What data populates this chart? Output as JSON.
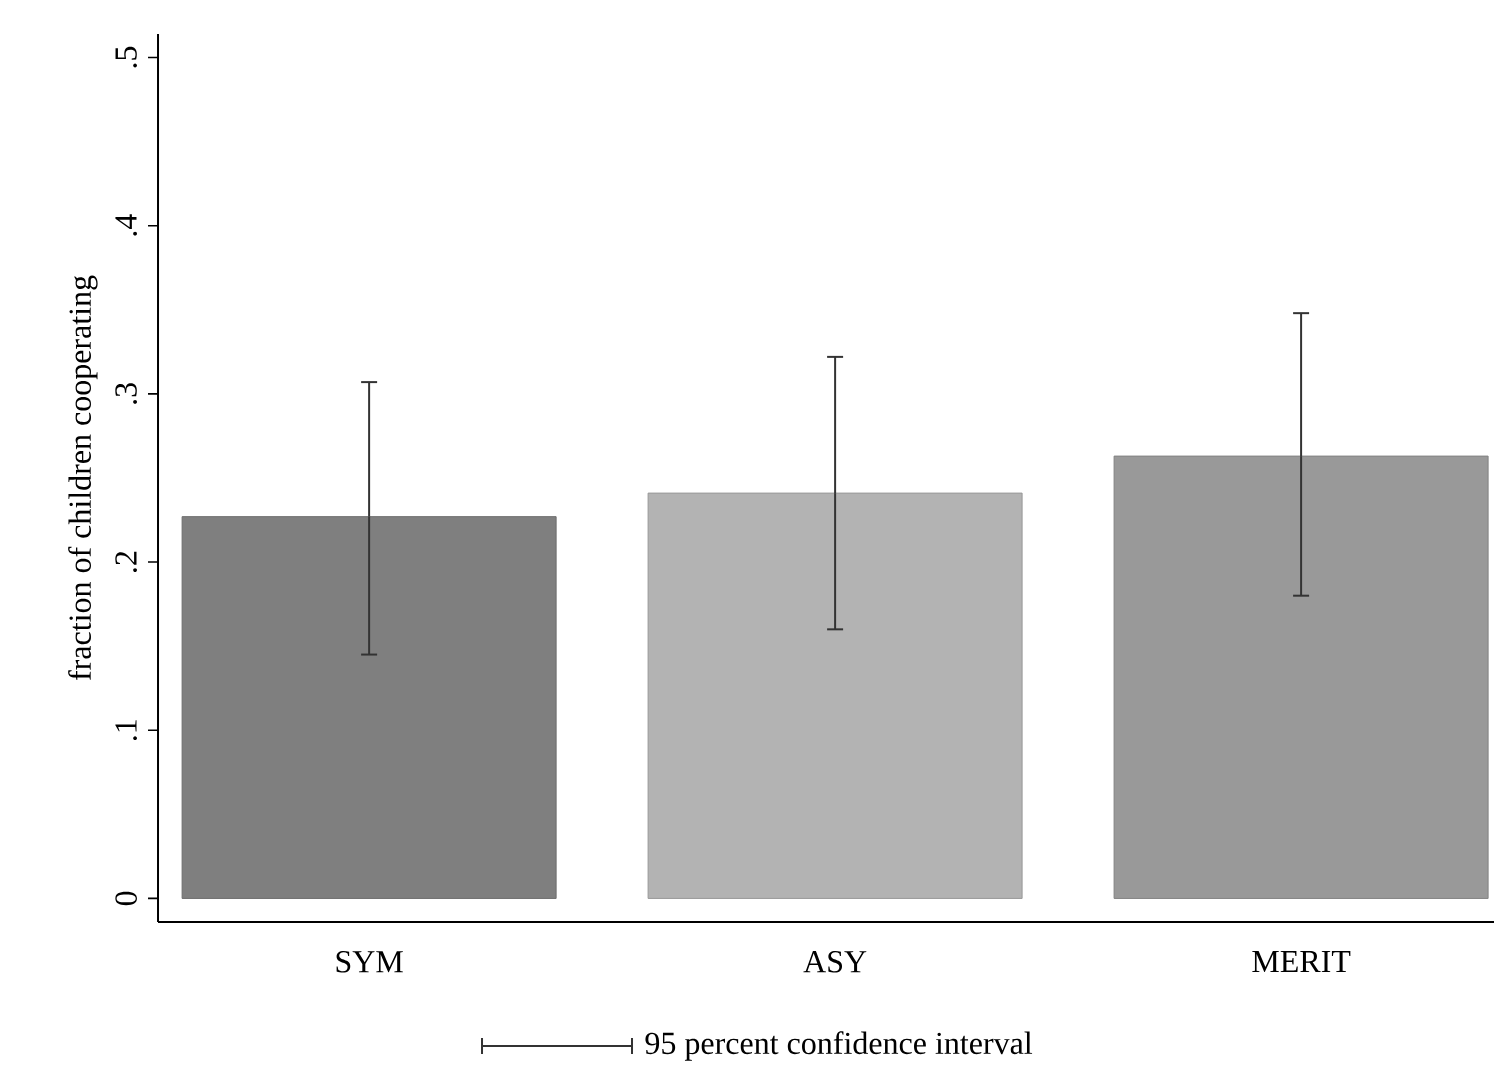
{
  "chart_data": {
    "type": "bar",
    "ylabel": "fraction of  children cooperating",
    "categories": [
      "SYM",
      "ASY",
      "MERIT"
    ],
    "values": [
      0.227,
      0.241,
      0.263
    ],
    "colors": [
      "#7f7f7f",
      "#b3b3b3",
      "#999999"
    ],
    "errors": [
      [
        0.145,
        0.307
      ],
      [
        0.16,
        0.322
      ],
      [
        0.18,
        0.348
      ]
    ],
    "ylim": [
      -0.014,
      0.514
    ],
    "yticks": [
      0,
      {
        "value": 0.1,
        "label": ".1"
      },
      {
        "value": 0.2,
        "label": ".2"
      },
      {
        "value": 0.3,
        "label": ".3"
      },
      {
        "value": 0.4,
        "label": ".4"
      },
      {
        "value": 0.5,
        "label": ".5"
      }
    ],
    "annotations": [
      "95 percent confidence interval"
    ],
    "grid": false
  }
}
